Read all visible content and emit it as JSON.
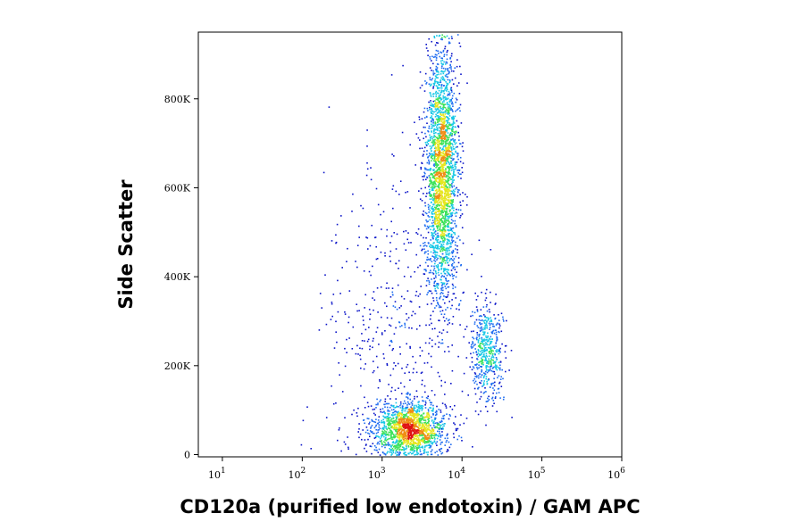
{
  "chart_data": {
    "type": "scatter",
    "subtype": "flow-cytometry density dot plot",
    "xlabel": "CD120a (purified low endotoxin) / GAM APC",
    "ylabel": "Side Scatter",
    "x_scale": "log",
    "xlim": [
      5,
      1000000
    ],
    "ylim": [
      -5000,
      950000
    ],
    "x_ticks": [
      {
        "value": 10,
        "base": "10",
        "exp": "1"
      },
      {
        "value": 100,
        "base": "10",
        "exp": "2"
      },
      {
        "value": 1000,
        "base": "10",
        "exp": "3"
      },
      {
        "value": 10000,
        "base": "10",
        "exp": "4"
      },
      {
        "value": 100000,
        "base": "10",
        "exp": "5"
      },
      {
        "value": 1000000,
        "base": "10",
        "exp": "6"
      }
    ],
    "y_ticks": [
      {
        "value": 0,
        "label": "0"
      },
      {
        "value": 200000,
        "label": "200K"
      },
      {
        "value": 400000,
        "label": "400K"
      },
      {
        "value": 600000,
        "label": "600K"
      },
      {
        "value": 800000,
        "label": "800K"
      }
    ],
    "grid": false,
    "legend": "none",
    "color_scale": [
      "#0a14c8",
      "#1e6cf0",
      "#18c8e6",
      "#3ce25a",
      "#e6e620",
      "#f08c14",
      "#e01414"
    ],
    "populations": [
      {
        "x_center": 2200,
        "x_log_spread": 0.22,
        "y_center": 60000,
        "y_spread": 30000,
        "count": 1600
      },
      {
        "x_center": 5500,
        "x_log_spread": 0.1,
        "y_center": 640000,
        "y_spread": 140000,
        "count": 2600
      },
      {
        "x_center": 20000,
        "x_log_spread": 0.1,
        "y_center": 230000,
        "y_spread": 55000,
        "count": 520
      },
      {
        "x_center": 1500,
        "x_log_spread": 0.45,
        "y_center": 280000,
        "y_spread": 200000,
        "count": 480
      }
    ]
  }
}
